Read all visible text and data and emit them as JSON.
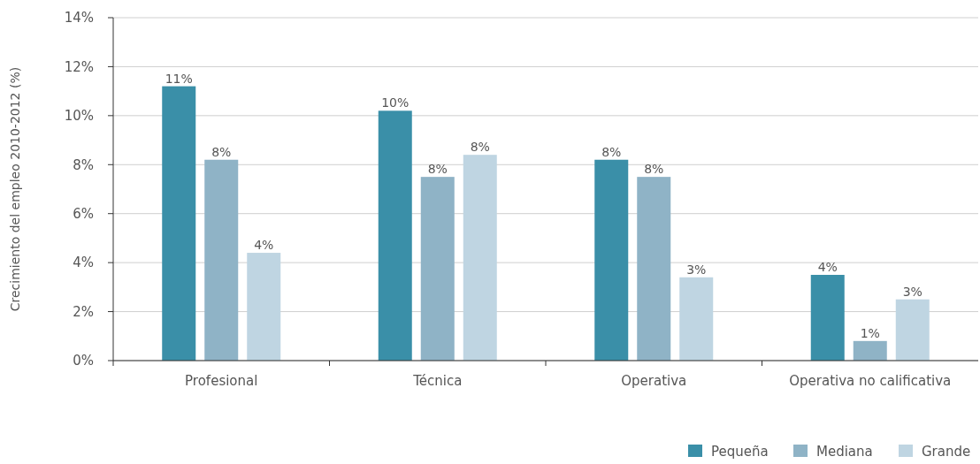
{
  "chart_data": {
    "type": "bar",
    "ylabel": "Crecimiento del empleo 2010-2012 (%)",
    "categories": [
      "Profesional",
      "Técnica",
      "Operativa",
      "Operativa no calificativa"
    ],
    "series": [
      {
        "name": "Pequeña",
        "color": "#3a8fa8",
        "values": [
          11.2,
          10.2,
          8.2,
          3.5
        ],
        "value_labels": [
          "11%",
          "10%",
          "8%",
          "4%"
        ]
      },
      {
        "name": "Mediana",
        "color": "#8fb3c6",
        "values": [
          8.2,
          7.5,
          7.5,
          0.8
        ],
        "value_labels": [
          "8%",
          "8%",
          "8%",
          "1%"
        ]
      },
      {
        "name": "Grande",
        "color": "#bfd5e2",
        "values": [
          4.4,
          8.4,
          3.4,
          2.5
        ],
        "value_labels": [
          "4%",
          "8%",
          "3%",
          "3%"
        ]
      }
    ],
    "ylim": [
      0,
      14
    ],
    "yticks": [
      {
        "value": 0,
        "label": "0%"
      },
      {
        "value": 2,
        "label": "2%"
      },
      {
        "value": 4,
        "label": "4%"
      },
      {
        "value": 6,
        "label": "6%"
      },
      {
        "value": 8,
        "label": "8%"
      },
      {
        "value": 10,
        "label": "10%"
      },
      {
        "value": 12,
        "label": "12%"
      },
      {
        "value": 14,
        "label": "14%"
      }
    ],
    "grid": "y",
    "legend": "bottom right"
  }
}
